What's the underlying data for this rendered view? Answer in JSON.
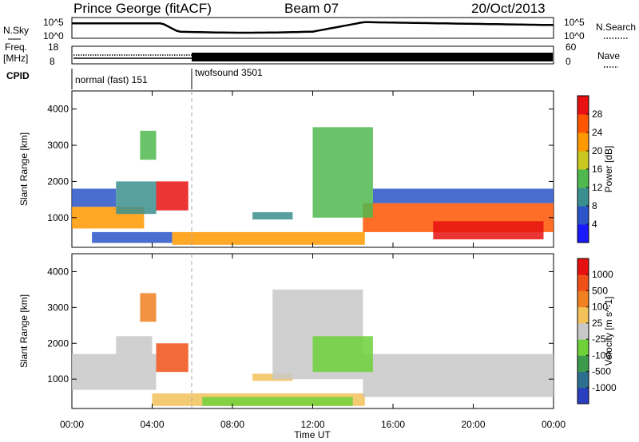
{
  "header": {
    "station": "Prince George (fitACF)",
    "beam": "Beam 07",
    "date": "20/Oct/2013"
  },
  "top_panels": {
    "nsky_label": "N.Sky",
    "nsky_ticks": [
      "10^5",
      "10^0"
    ],
    "nsearch_label": "N.Search",
    "nsearch_ticks": [
      "10^5",
      "10^0"
    ],
    "freq_label_1": "Freq.",
    "freq_label_2": "[MHz]",
    "freq_ticks": [
      "18",
      "8"
    ],
    "nave_label": "Nave",
    "nave_ticks": [
      "60",
      "0"
    ],
    "cpid_label": "CPID",
    "cpid_segments": [
      {
        "name": "normal (fast) 151",
        "start_hour": 0,
        "end_hour": 6
      },
      {
        "name": "twofsound 3501",
        "start_hour": 6,
        "end_hour": 24
      }
    ]
  },
  "chart_data": [
    {
      "type": "heatmap",
      "panel": "power",
      "ylabel": "Slant Range [km]",
      "yticks": [
        1000,
        2000,
        3000,
        4000
      ],
      "ylim": [
        180,
        4500
      ],
      "xlim": [
        0,
        24
      ],
      "colorbar": {
        "label": "Power [dB]",
        "ticks": [
          "4",
          "8",
          "12",
          "16",
          "20",
          "24",
          "28"
        ],
        "colors": [
          "#1a1aff",
          "#2a54c8",
          "#3b8f8f",
          "#4fb84f",
          "#c8c820",
          "#ff9900",
          "#ff5500",
          "#e81010"
        ]
      },
      "regions": [
        {
          "t0": 0.0,
          "t1": 3.6,
          "r0": 700,
          "r1": 1300,
          "color": "#ff9900"
        },
        {
          "t0": 0.0,
          "t1": 2.2,
          "r0": 1300,
          "r1": 1800,
          "color": "#2a54c8"
        },
        {
          "t0": 2.2,
          "t1": 4.2,
          "r0": 1100,
          "r1": 2000,
          "color": "#3b8f8f"
        },
        {
          "t0": 4.2,
          "t1": 5.8,
          "r0": 1200,
          "r1": 2000,
          "color": "#e81010"
        },
        {
          "t0": 3.4,
          "t1": 4.2,
          "r0": 2600,
          "r1": 3400,
          "color": "#4fb84f"
        },
        {
          "t0": 1.0,
          "t1": 5.0,
          "r0": 300,
          "r1": 600,
          "color": "#2a54c8"
        },
        {
          "t0": 5.0,
          "t1": 14.6,
          "r0": 250,
          "r1": 600,
          "color": "#ff9900"
        },
        {
          "t0": 9.0,
          "t1": 11.0,
          "r0": 950,
          "r1": 1150,
          "color": "#3b8f8f"
        },
        {
          "t0": 14.5,
          "t1": 24.0,
          "r0": 600,
          "r1": 1400,
          "color": "#ff5500"
        },
        {
          "t0": 15.0,
          "t1": 24.0,
          "r0": 1400,
          "r1": 1800,
          "color": "#2a54c8"
        },
        {
          "t0": 18.0,
          "t1": 23.5,
          "r0": 400,
          "r1": 900,
          "color": "#e81010"
        },
        {
          "t0": 12.0,
          "t1": 15.0,
          "r0": 1000,
          "r1": 3500,
          "color": "#4fb84f"
        }
      ]
    },
    {
      "type": "heatmap",
      "panel": "velocity",
      "ylabel": "Slant Range [km]",
      "yticks": [
        1000,
        2000,
        3000,
        4000
      ],
      "ylim": [
        180,
        4500
      ],
      "xlim": [
        0,
        24
      ],
      "colorbar": {
        "label": "Velocity [m s^-1]",
        "ticks": [
          "1000",
          "500",
          "100",
          "25",
          "-25",
          "-100",
          "-500",
          "-1000"
        ],
        "colors": [
          "#2a3fc0",
          "#2d6f8f",
          "#3c9a4c",
          "#6fd13a",
          "#c8c8c8",
          "#f2c15a",
          "#f08020",
          "#f05018",
          "#e61010"
        ]
      },
      "regions": [
        {
          "t0": 0.0,
          "t1": 4.2,
          "r0": 700,
          "r1": 1700,
          "color": "#c8c8c8"
        },
        {
          "t0": 2.2,
          "t1": 4.0,
          "r0": 1700,
          "r1": 2200,
          "color": "#c8c8c8"
        },
        {
          "t0": 4.2,
          "t1": 5.8,
          "r0": 1200,
          "r1": 2000,
          "color": "#f05018"
        },
        {
          "t0": 3.4,
          "t1": 4.2,
          "r0": 2600,
          "r1": 3400,
          "color": "#f08020"
        },
        {
          "t0": 4.0,
          "t1": 14.6,
          "r0": 250,
          "r1": 600,
          "color": "#f2c15a"
        },
        {
          "t0": 9.0,
          "t1": 11.0,
          "r0": 950,
          "r1": 1150,
          "color": "#f2c15a"
        },
        {
          "t0": 14.5,
          "t1": 24.0,
          "r0": 500,
          "r1": 1700,
          "color": "#c8c8c8"
        },
        {
          "t0": 10.0,
          "t1": 14.5,
          "r0": 1000,
          "r1": 3500,
          "color": "#c8c8c8"
        },
        {
          "t0": 12.0,
          "t1": 15.0,
          "r0": 1200,
          "r1": 2200,
          "color": "#6fd13a"
        },
        {
          "t0": 6.5,
          "t1": 14.0,
          "r0": 250,
          "r1": 500,
          "color": "#6fd13a"
        }
      ]
    }
  ],
  "x_axis": {
    "ticks": [
      "00:00",
      "04:00",
      "08:00",
      "12:00",
      "16:00",
      "20:00",
      "00:00"
    ],
    "tick_hours": [
      0,
      4,
      8,
      12,
      16,
      20,
      24
    ],
    "label": "Time UT"
  }
}
